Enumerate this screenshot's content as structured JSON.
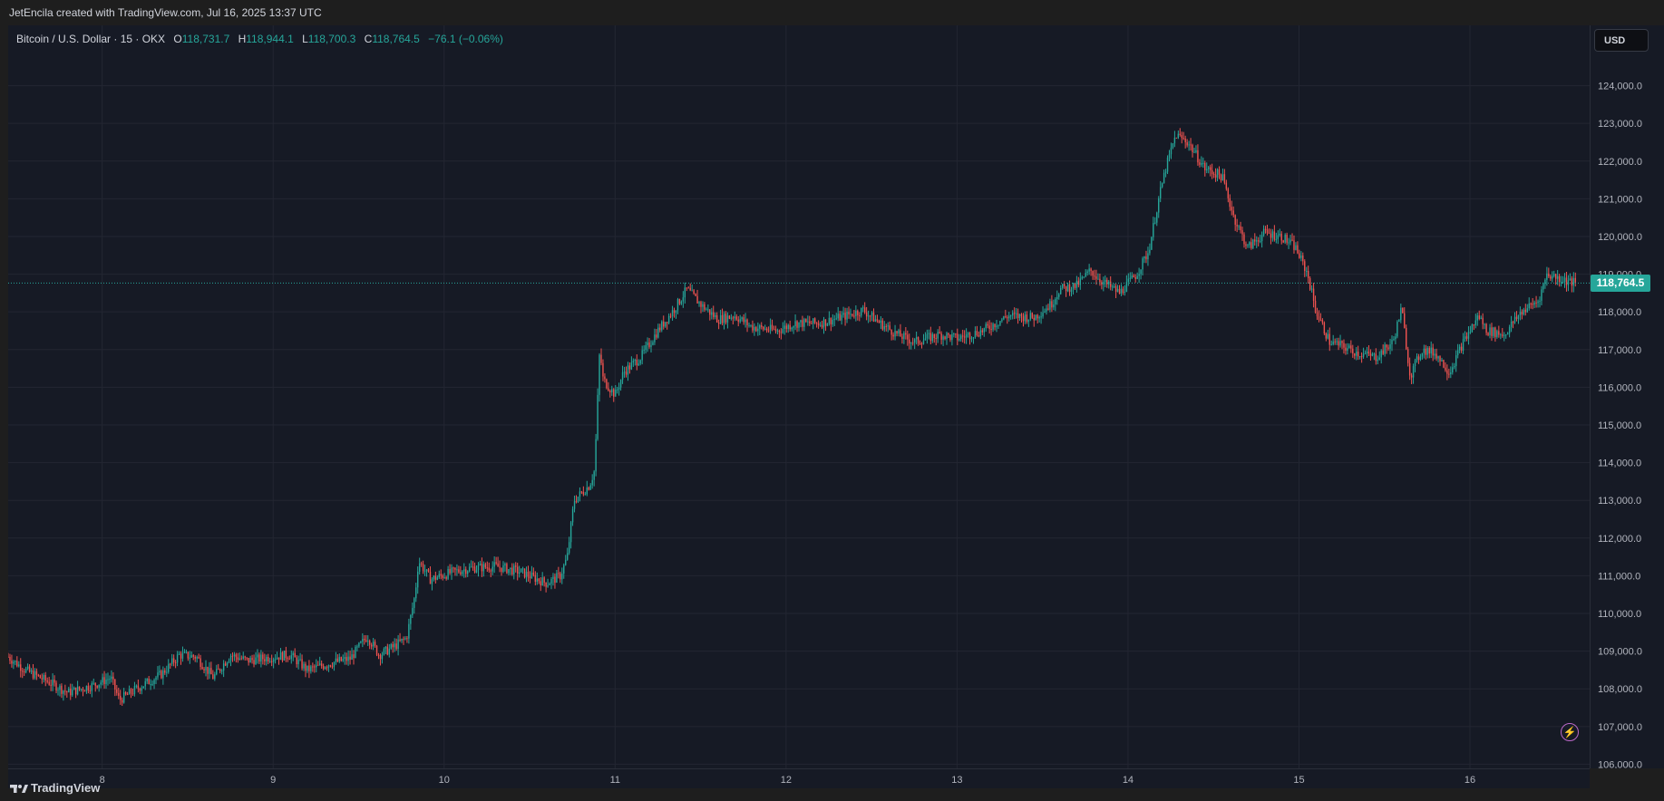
{
  "attribution": "JetEncila created with TradingView.com, Jul 16, 2025 13:37 UTC",
  "legend": {
    "symbol": "Bitcoin / U.S. Dollar · 15 · OKX",
    "o_label": "O",
    "o": "118,731.7",
    "h_label": "H",
    "h": "118,944.1",
    "l_label": "L",
    "l": "118,700.3",
    "c_label": "C",
    "c": "118,764.5",
    "change": "−76.1 (−0.06%)"
  },
  "currency_button": "USD",
  "last_price_label": "118,764.5",
  "footer_brand": "TradingView",
  "colors": {
    "up": "#26a69a",
    "down": "#ef5350",
    "grid": "#232632",
    "background": "#161a25"
  },
  "chart_data": {
    "type": "candlestick",
    "title": "Bitcoin / U.S. Dollar · 15 · OKX",
    "interval": "15",
    "x_tick_labels": [
      "8",
      "9",
      "10",
      "11",
      "12",
      "13",
      "14",
      "15",
      "16"
    ],
    "y_tick_labels": [
      "124,000.0",
      "123,000.0",
      "122,000.0",
      "121,000.0",
      "120,000.0",
      "119,000.0",
      "118,000.0",
      "117,000.0",
      "116,000.0",
      "115,000.0",
      "114,000.0",
      "113,000.0",
      "112,000.0",
      "111,000.0",
      "110,000.0",
      "109,000.0",
      "108,000.0",
      "107,000.0",
      "106,000.0"
    ],
    "y_ticks": [
      124000,
      123000,
      122000,
      121000,
      120000,
      119000,
      118000,
      117000,
      116000,
      115000,
      114000,
      113000,
      112000,
      111000,
      110000,
      109000,
      108000,
      107000,
      106000
    ],
    "ylim": [
      105890,
      125600
    ],
    "xlim": [
      7.45,
      16.7
    ],
    "last_price": 118764.5,
    "grid": true,
    "price_path": [
      [
        7.45,
        108850
      ],
      [
        7.55,
        108500
      ],
      [
        7.7,
        108150
      ],
      [
        7.8,
        107900
      ],
      [
        7.95,
        108100
      ],
      [
        8.05,
        108300
      ],
      [
        8.1,
        107700
      ],
      [
        8.2,
        108000
      ],
      [
        8.35,
        108400
      ],
      [
        8.45,
        108900
      ],
      [
        8.55,
        108850
      ],
      [
        8.65,
        108300
      ],
      [
        8.75,
        108900
      ],
      [
        8.85,
        108750
      ],
      [
        9.0,
        108850
      ],
      [
        9.1,
        108900
      ],
      [
        9.2,
        108500
      ],
      [
        9.35,
        108700
      ],
      [
        9.45,
        108800
      ],
      [
        9.55,
        109400
      ],
      [
        9.62,
        108900
      ],
      [
        9.7,
        109100
      ],
      [
        9.78,
        109350
      ],
      [
        9.83,
        110500
      ],
      [
        9.85,
        111400
      ],
      [
        9.92,
        110900
      ],
      [
        10.05,
        111100
      ],
      [
        10.15,
        111200
      ],
      [
        10.3,
        111250
      ],
      [
        10.45,
        111100
      ],
      [
        10.6,
        110800
      ],
      [
        10.68,
        111000
      ],
      [
        10.72,
        111500
      ],
      [
        10.76,
        113000
      ],
      [
        10.85,
        113400
      ],
      [
        10.88,
        113800
      ],
      [
        10.91,
        117000
      ],
      [
        10.93,
        116200
      ],
      [
        11.0,
        115800
      ],
      [
        11.05,
        116400
      ],
      [
        11.15,
        116800
      ],
      [
        11.25,
        117500
      ],
      [
        11.35,
        118100
      ],
      [
        11.42,
        118600
      ],
      [
        11.5,
        118200
      ],
      [
        11.6,
        117800
      ],
      [
        11.7,
        117900
      ],
      [
        11.8,
        117600
      ],
      [
        11.95,
        117500
      ],
      [
        12.05,
        117700
      ],
      [
        12.2,
        117700
      ],
      [
        12.35,
        117900
      ],
      [
        12.45,
        118050
      ],
      [
        12.55,
        117700
      ],
      [
        12.65,
        117400
      ],
      [
        12.75,
        117200
      ],
      [
        12.9,
        117400
      ],
      [
        13.0,
        117300
      ],
      [
        13.15,
        117500
      ],
      [
        13.3,
        117900
      ],
      [
        13.45,
        117850
      ],
      [
        13.55,
        118200
      ],
      [
        13.6,
        118600
      ],
      [
        13.7,
        118700
      ],
      [
        13.78,
        119100
      ],
      [
        13.85,
        118800
      ],
      [
        13.95,
        118500
      ],
      [
        14.05,
        119000
      ],
      [
        14.12,
        119600
      ],
      [
        14.18,
        121000
      ],
      [
        14.22,
        121800
      ],
      [
        14.28,
        122700
      ],
      [
        14.35,
        122500
      ],
      [
        14.45,
        121800
      ],
      [
        14.55,
        121600
      ],
      [
        14.62,
        120500
      ],
      [
        14.7,
        119700
      ],
      [
        14.8,
        120100
      ],
      [
        14.9,
        120000
      ],
      [
        14.98,
        119700
      ],
      [
        15.05,
        119000
      ],
      [
        15.1,
        118000
      ],
      [
        15.18,
        117200
      ],
      [
        15.25,
        117100
      ],
      [
        15.35,
        116900
      ],
      [
        15.45,
        116800
      ],
      [
        15.55,
        117200
      ],
      [
        15.6,
        118100
      ],
      [
        15.65,
        116300
      ],
      [
        15.72,
        117000
      ],
      [
        15.8,
        116900
      ],
      [
        15.88,
        116400
      ],
      [
        15.95,
        117100
      ],
      [
        16.05,
        117900
      ],
      [
        16.1,
        117500
      ],
      [
        16.2,
        117400
      ],
      [
        16.3,
        118000
      ],
      [
        16.4,
        118300
      ],
      [
        16.45,
        119000
      ],
      [
        16.52,
        118900
      ],
      [
        16.58,
        118800
      ],
      [
        16.62,
        118764.5
      ]
    ]
  }
}
